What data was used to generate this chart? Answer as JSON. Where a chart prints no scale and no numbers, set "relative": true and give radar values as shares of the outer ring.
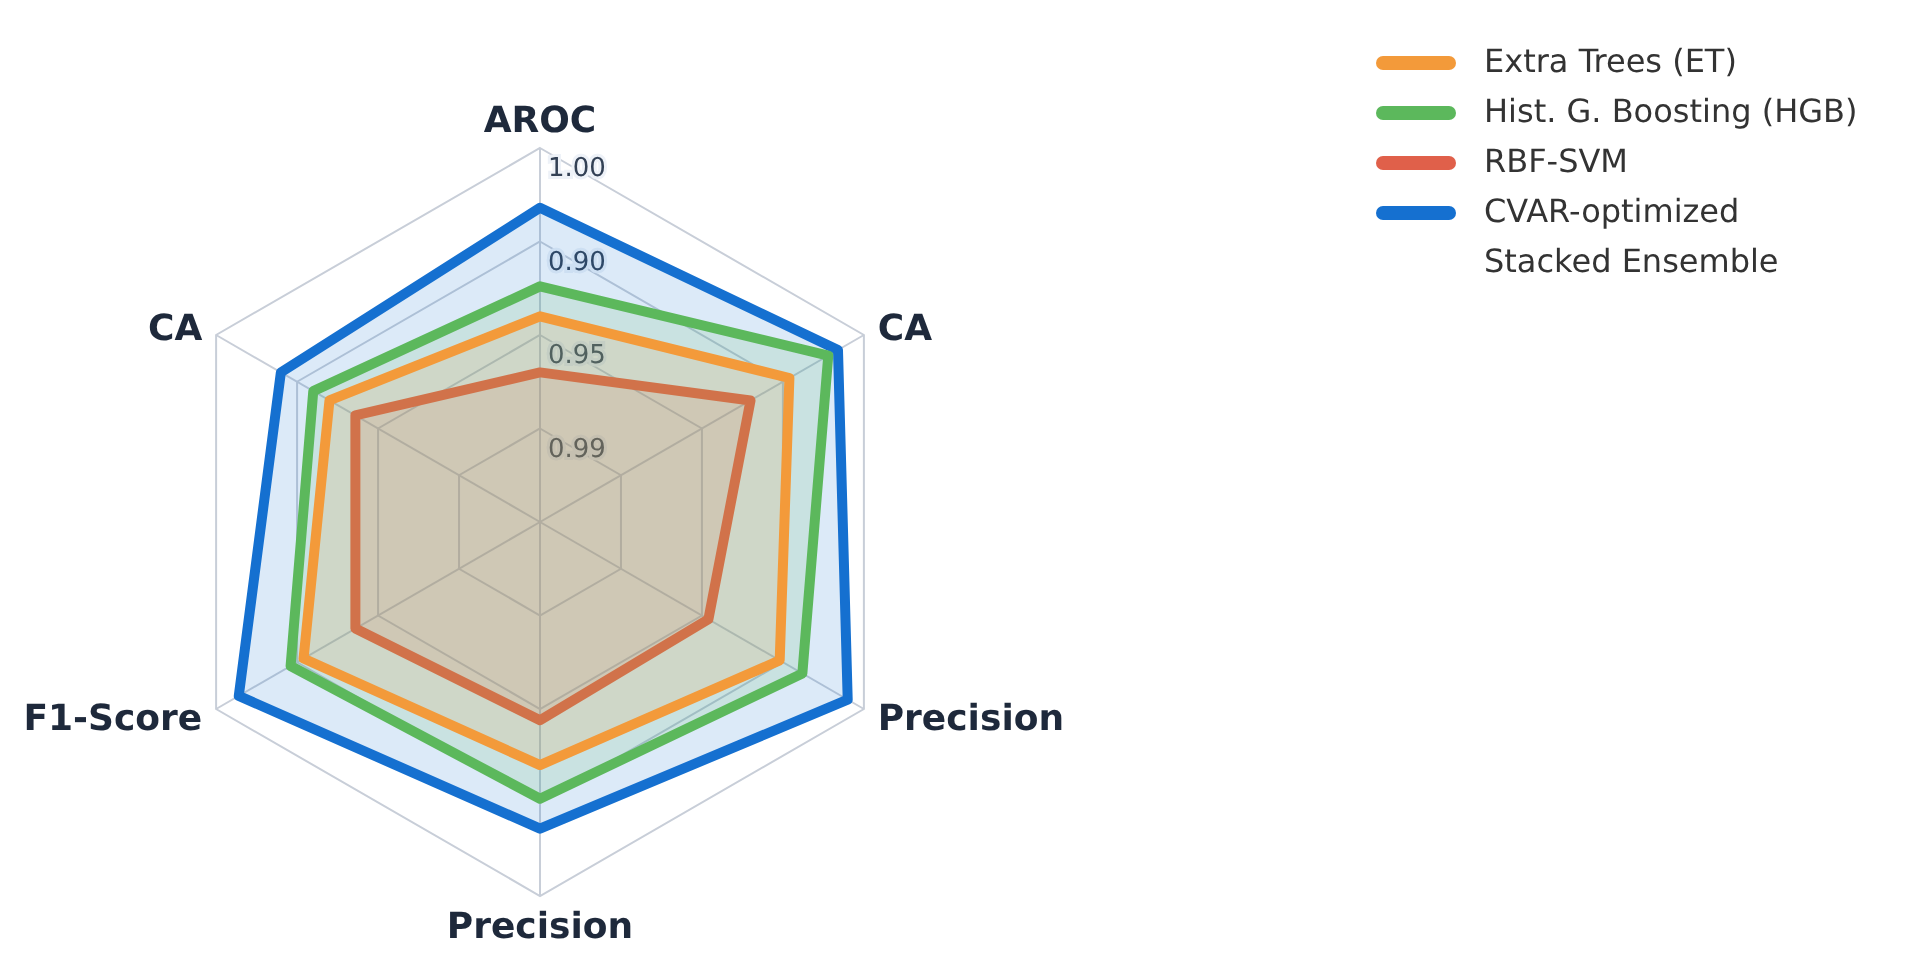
{
  "chart_data": {
    "type": "radar",
    "categories": [
      "AROC",
      "CA",
      "Precision",
      "Precision",
      "F1-Score",
      "CA"
    ],
    "series": [
      {
        "name": "Extra Trees (ET)",
        "color": "#f39a3a",
        "values": [
          0.55,
          0.77,
          0.74,
          0.65,
          0.73,
          0.65
        ]
      },
      {
        "name": "Hist. G. Boosting (HGB)",
        "color": "#5cb85c",
        "values": [
          0.63,
          0.89,
          0.81,
          0.74,
          0.77,
          0.7
        ]
      },
      {
        "name": "RBF-SVM",
        "color": "#e0604a",
        "values": [
          0.4,
          0.65,
          0.52,
          0.53,
          0.57,
          0.57
        ]
      },
      {
        "name": "CVAR-optimized Stacked Ensemble",
        "color": "#1570d0",
        "values": [
          0.84,
          0.92,
          0.95,
          0.82,
          0.93,
          0.8
        ]
      }
    ],
    "relative": true,
    "annotations": [
      "1.00",
      "0.90",
      "0.95",
      "0.99"
    ],
    "grid": true,
    "legend": "top right"
  }
}
